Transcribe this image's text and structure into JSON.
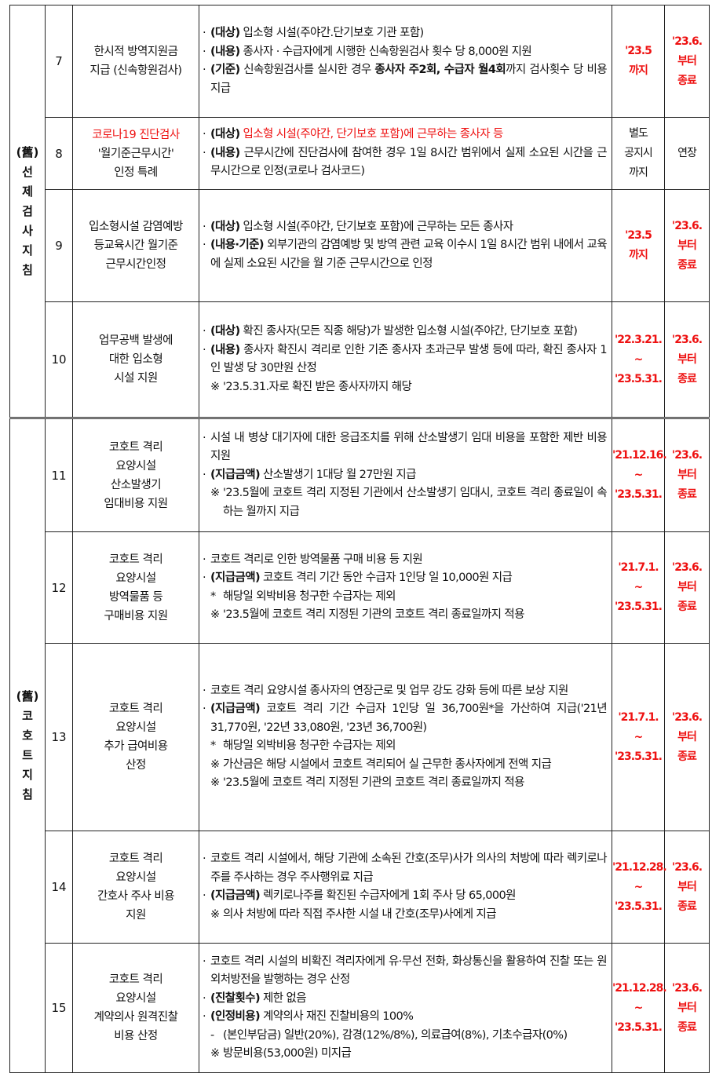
{
  "sections": [
    {
      "label": [
        "(舊)",
        "선",
        "제",
        "검",
        "사",
        "지",
        "침"
      ],
      "rows": [
        0,
        1,
        2,
        3
      ]
    },
    {
      "label": [
        "(舊)",
        "코",
        "호",
        "트",
        "지",
        "침"
      ],
      "rows": [
        4,
        5,
        6,
        7,
        8
      ]
    }
  ],
  "colors": {
    "accent_red": "#ee1111",
    "text": "#111111"
  },
  "rows": [
    {
      "num": "7",
      "title": [
        "한시적 방역지원금",
        "지급 (신속항원검사)"
      ],
      "title_red_lines": 0,
      "content": [
        {
          "mark": "·",
          "segs": [
            {
              "t": "(대상)",
              "s": "b"
            },
            {
              "t": " 입소형 시설(주야간.단기보호 기관 포함)"
            }
          ]
        },
        {
          "mark": "·",
          "segs": [
            {
              "t": "(내용)",
              "s": "b"
            },
            {
              "t": " 종사자 · 수급자에게 시행한 신속항원검사 횟수 당 8,000원 지원"
            }
          ]
        },
        {
          "mark": "·",
          "segs": [
            {
              "t": "(기준)",
              "s": "b"
            },
            {
              "t": " 신속항원검사를 실시한 경우 "
            },
            {
              "t": "종사자 주2회, 수급자 월4회",
              "s": "b"
            },
            {
              "t": "까지 검사횟수 당 비용 지급"
            }
          ]
        }
      ],
      "period": [
        "'23.5",
        "까지"
      ],
      "end": [
        "'23.6.",
        "부터",
        "종료"
      ],
      "red_dates": true
    },
    {
      "num": "8",
      "title": [
        "코로나19 진단검사",
        "'월기준근무시간'",
        "인정 특례"
      ],
      "title_red_lines": 1,
      "content": [
        {
          "mark": "·",
          "segs": [
            {
              "t": "(대상)",
              "s": "b"
            },
            {
              "t": " 입소형 시설(주야간, 단기보호 포함)에 근무하는 종사자 등",
              "s": "r"
            }
          ]
        },
        {
          "mark": "·",
          "segs": [
            {
              "t": "(내용)",
              "s": "b"
            },
            {
              "t": " 근무시간에 진단검사에 참여한 경우 1일 8시간 범위에서 실제 소요된 시간을 근무시간으로 인정(코로나 검사코드)"
            }
          ]
        }
      ],
      "period": [
        "별도",
        "공지시",
        "까지"
      ],
      "end": [
        "연장"
      ],
      "red_dates": false
    },
    {
      "num": "9",
      "title": [
        "입소형시설 감염예방",
        "등교육시간 월기준",
        "근무시간인정"
      ],
      "title_red_lines": 0,
      "content": [
        {
          "mark": "·",
          "segs": [
            {
              "t": "(대상)",
              "s": "b"
            },
            {
              "t": " 입소형 시설(주야간, 단기보호 포함)에 근무하는 모든 종사자"
            }
          ]
        },
        {
          "mark": "·",
          "segs": [
            {
              "t": "(내용·기준)",
              "s": "b"
            },
            {
              "t": " 외부기관의 감염예방 및 방역 관련 교육 이수시 1일 8시간 범위 내에서 교육에 실제 소요된 시간을 월 기준 근무시간으로 인정"
            }
          ]
        }
      ],
      "period": [
        "'23.5",
        "까지"
      ],
      "end": [
        "'23.6.",
        "부터",
        "종료"
      ],
      "red_dates": true
    },
    {
      "num": "10",
      "title": [
        "업무공백 발생에",
        "대한 입소형",
        "시설 지원"
      ],
      "title_red_lines": 0,
      "content": [
        {
          "mark": "·",
          "segs": [
            {
              "t": "(대상)",
              "s": "b"
            },
            {
              "t": " 확진 종사자(모든 직종 해당)가 발생한 입소형 시설(주야간, 단기보호 포함)"
            }
          ]
        },
        {
          "mark": "·",
          "segs": [
            {
              "t": "(내용)",
              "s": "b"
            },
            {
              "t": " 종사자 확진시 격리로 인한 기존 종사자 초과근무 발생 등에 따라, 확진 종사자 1인 발생 당 30만원 산정"
            }
          ]
        },
        {
          "mark": "※",
          "segs": [
            {
              "t": " '23.5.31.자로 확진 받은 종사자까지 해당"
            }
          ]
        }
      ],
      "period": [
        "'22.3.21.",
        "~",
        "'23.5.31."
      ],
      "end": [
        "'23.6.",
        "부터",
        "종료"
      ],
      "red_dates": true
    },
    {
      "num": "11",
      "title": [
        "코호트 격리",
        "요양시설",
        "산소발생기",
        "임대비용 지원"
      ],
      "title_red_lines": 0,
      "content": [
        {
          "mark": "·",
          "segs": [
            {
              "t": "시설 내 병상 대기자에 대한 응급조치를 위해 산소발생기 임대 비용을 포함한 제반 비용 지원"
            }
          ]
        },
        {
          "mark": "·",
          "segs": [
            {
              "t": "(지급금액)",
              "s": "b"
            },
            {
              "t": " 산소발생기 1대당 월 27만원 지급"
            }
          ]
        },
        {
          "mark": "※",
          "segs": [
            {
              "t": " '23.5월에 코호트 격리 지정된 기관에서 산소발생기 임대시, 코호트 격리 종료일이 속하는 월까지 지급"
            }
          ]
        }
      ],
      "period": [
        "'21.12.16.",
        "~",
        "'23.5.31."
      ],
      "end": [
        "'23.6.",
        "부터",
        "종료"
      ],
      "red_dates": true
    },
    {
      "num": "12",
      "title": [
        "코호트 격리",
        "요양시설",
        "방역물품 등",
        "구매비용 지원"
      ],
      "title_red_lines": 0,
      "content": [
        {
          "mark": "·",
          "segs": [
            {
              "t": "코호트 격리로 인한 방역물품 구매 비용 등 지원"
            }
          ]
        },
        {
          "mark": "·",
          "segs": [
            {
              "t": "(지급금액)",
              "s": "b"
            },
            {
              "t": " 코호트 격리 기간 동안 수급자 1인당 일 10,000원 지급"
            }
          ]
        },
        {
          "mark": "*",
          "segs": [
            {
              "t": " 해당일 외박비용 청구한 수급자는 제외"
            }
          ]
        },
        {
          "mark": "※",
          "segs": [
            {
              "t": " '23.5월에 코호트 격리 지정된 기관의 코호트 격리 종료일까지 적용"
            }
          ]
        }
      ],
      "period": [
        "'21.7.1.",
        "~",
        "'23.5.31."
      ],
      "end": [
        "'23.6.",
        "부터",
        "종료"
      ],
      "red_dates": true
    },
    {
      "num": "13",
      "title": [
        "코호트 격리",
        "요양시설",
        "추가 급여비용",
        "산정"
      ],
      "title_red_lines": 0,
      "content": [
        {
          "mark": "·",
          "segs": [
            {
              "t": "코호트 격리 요양시설 종사자의 연장근로 및 업무 강도 강화 등에 따른 보상 지원"
            }
          ]
        },
        {
          "mark": "·",
          "segs": [
            {
              "t": "(지급금액)",
              "s": "b"
            },
            {
              "t": " 코호트 격리 기간 수급자 1인당 일 36,700원*을 가산하여 지급('21년 31,770원, '22년 33,080원, '23년 36,700원)"
            }
          ]
        },
        {
          "mark": "*",
          "segs": [
            {
              "t": " 해당일 외박비용 청구한 수급자는 제외"
            }
          ]
        },
        {
          "mark": "※",
          "segs": [
            {
              "t": " 가산금은 해당 시설에서 코호트 격리되어 실 근무한 종사자에게 전액 지급"
            }
          ]
        },
        {
          "mark": "※",
          "segs": [
            {
              "t": " '23.5월에 코호트 격리 지정된 기관의 코호트 격리 종료일까지 적용"
            }
          ]
        }
      ],
      "period": [
        "'21.7.1.",
        "~",
        "'23.5.31."
      ],
      "end": [
        "'23.6.",
        "부터",
        "종료"
      ],
      "red_dates": true
    },
    {
      "num": "14",
      "title": [
        "코호트 격리",
        "요양시설",
        "간호사 주사 비용",
        "지원"
      ],
      "title_red_lines": 0,
      "content": [
        {
          "mark": "·",
          "segs": [
            {
              "t": "코호트 격리 시설에서, 해당 기관에 소속된 간호(조무)사가 의사의 처방에 따라 렉키로나주를 주사하는 경우 주사행위료 지급"
            }
          ]
        },
        {
          "mark": "·",
          "segs": [
            {
              "t": "(지급금액)",
              "s": "b"
            },
            {
              "t": " 렉키로나주를 확진된 수급자에게 1회 주사 당 65,000원"
            }
          ]
        },
        {
          "mark": "※",
          "segs": [
            {
              "t": " 의사 처방에 따라 직접 주사한 시설 내 간호(조무)사에게 지급"
            }
          ]
        }
      ],
      "period": [
        "'21.12.28.",
        "~",
        "'23.5.31."
      ],
      "end": [
        "'23.6.",
        "부터",
        "종료"
      ],
      "red_dates": true
    },
    {
      "num": "15",
      "title": [
        "코호트 격리",
        "요양시설",
        "계약의사 원격진찰",
        "비용 산정"
      ],
      "title_red_lines": 0,
      "content": [
        {
          "mark": "·",
          "segs": [
            {
              "t": "코호트 격리 시설의 비확진 격리자에게 유·무선 전화, 화상통신을 활용하여 진찰 또는 원외처방전을 발행하는 경우 산정"
            }
          ]
        },
        {
          "mark": "·",
          "segs": [
            {
              "t": "(진찰횟수)",
              "s": "b"
            },
            {
              "t": " 제한 없음"
            }
          ]
        },
        {
          "mark": "·",
          "segs": [
            {
              "t": "(인정비용)",
              "s": "b"
            },
            {
              "t": " 계약의사 재진 진찰비용의 100%"
            }
          ]
        },
        {
          "mark": "-",
          "segs": [
            {
              "t": " (본인부담금) 일반(20%), 감경(12%/8%), 의료급여(8%), 기초수급자(0%)"
            }
          ]
        },
        {
          "mark": "※",
          "segs": [
            {
              "t": " 방문비용(53,000원) 미지급"
            }
          ]
        }
      ],
      "period": [
        "'21.12.28.",
        "~",
        "'23.5.31."
      ],
      "end": [
        "'23.6.",
        "부터",
        "종료"
      ],
      "red_dates": true
    }
  ]
}
